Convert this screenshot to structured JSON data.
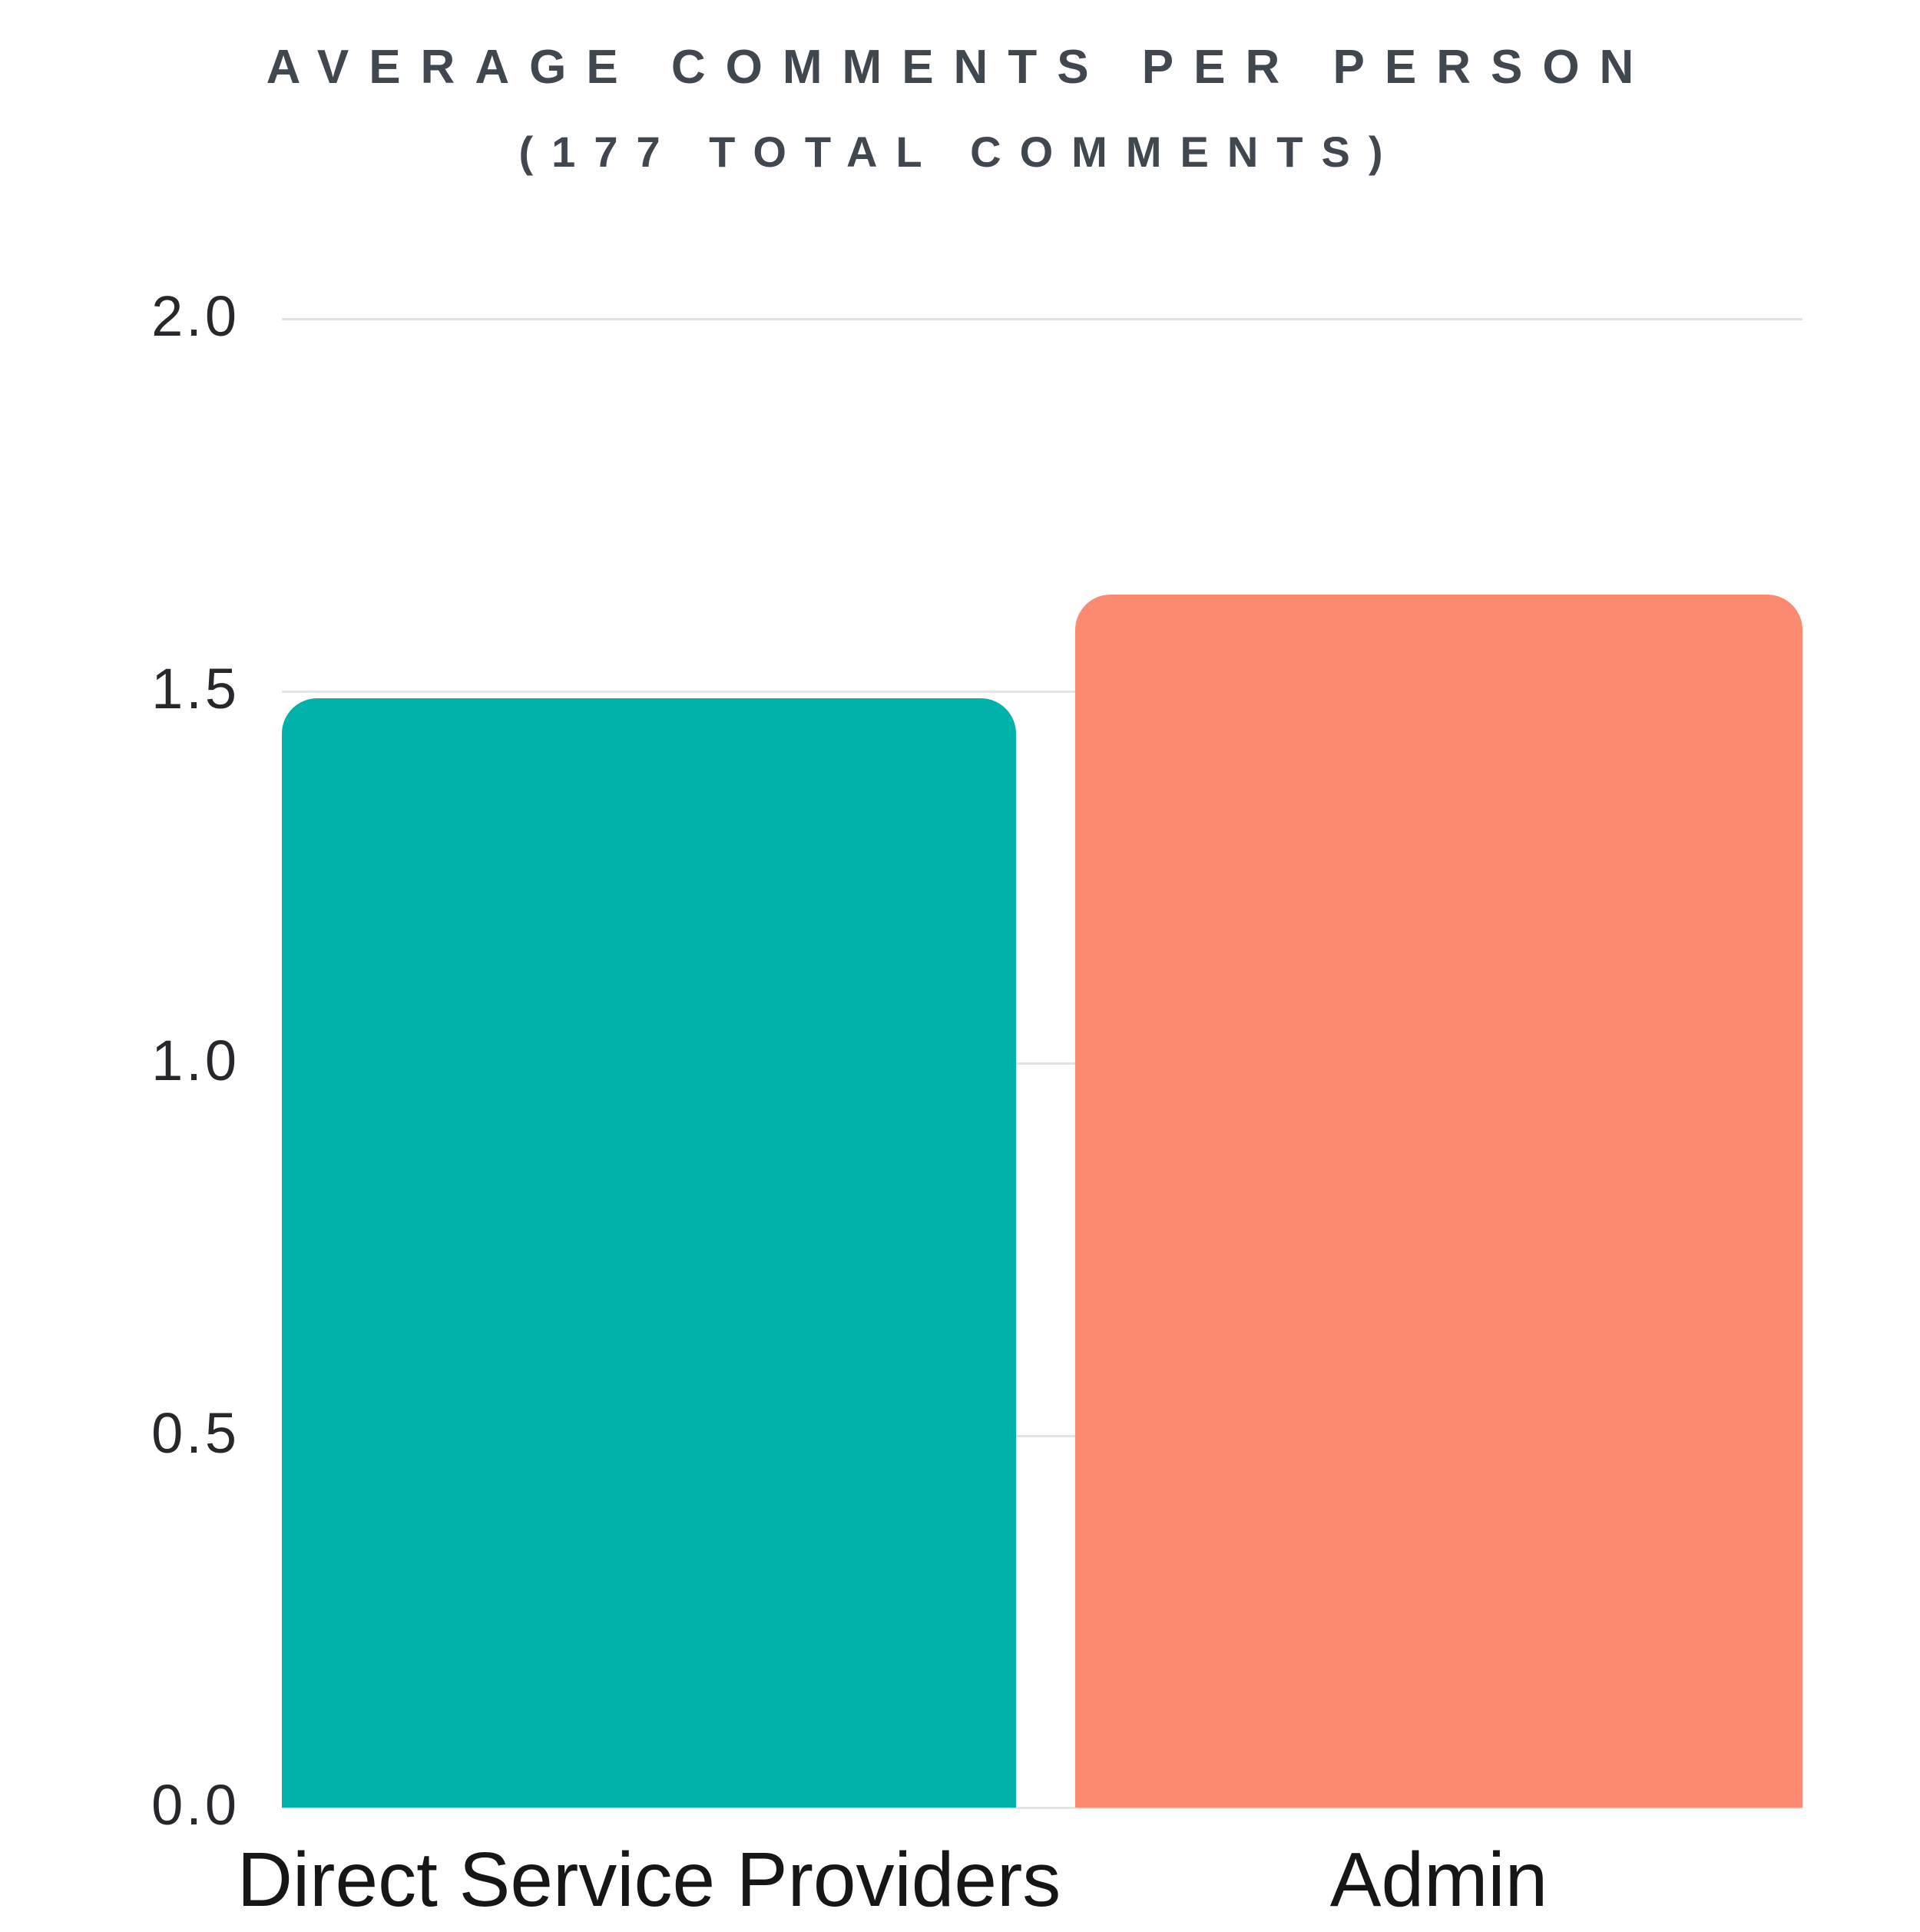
{
  "title": {
    "line1": "AVERAGE COMMENTS PER PERSON",
    "line2": "(177 TOTAL COMMENTS)"
  },
  "chart_data": {
    "type": "bar",
    "title": "AVERAGE COMMENTS PER PERSON (177 TOTAL COMMENTS)",
    "categories": [
      "Direct Service Providers",
      "Admin"
    ],
    "values": [
      1.49,
      1.63
    ],
    "total_comments": 177,
    "xlabel": "",
    "ylabel": "",
    "ylim": [
      0,
      2.0
    ],
    "yticks": [
      0.0,
      0.5,
      1.0,
      1.5,
      2.0
    ],
    "ytick_labels": [
      "0.0",
      "0.5",
      "1.0",
      "1.5",
      "2.0"
    ],
    "bar_colors": [
      "#00b2a9",
      "#fb8a70"
    ],
    "grid": true,
    "legend": false,
    "background": "#ffffff",
    "gridline_color": "#e4e4e4",
    "title_color": "#41474e",
    "tick_label_color": "#26282b",
    "x_label_color": "#161616"
  }
}
